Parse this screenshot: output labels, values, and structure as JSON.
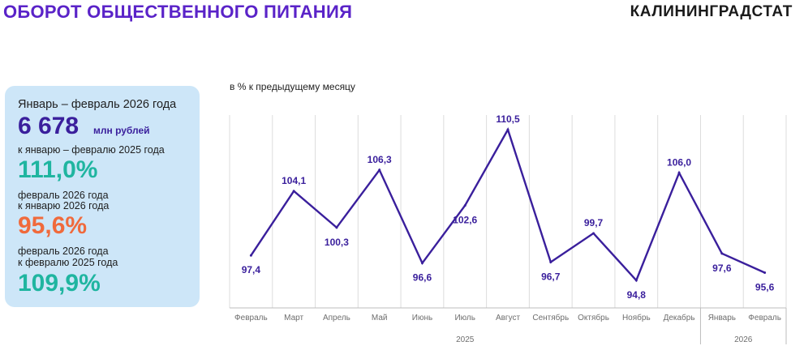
{
  "header": {
    "title": "ОБОРОТ ОБЩЕСТВЕННОГО ПИТАНИЯ",
    "brand": "КАЛИНИНГРАДСТАТ"
  },
  "summary": {
    "period": "Январь – февраль 2026 года",
    "amount": "6 678",
    "amount_unit": "млн рублей",
    "cmp1_caption": "к январю – февралю 2025 года",
    "cmp1_value": "111,0%",
    "cmp2_caption_line1": "февраль 2026 года",
    "cmp2_caption_line2": "к январю 2026 года",
    "cmp2_value": "95,6%",
    "cmp3_caption_line1": "февраль 2026 года",
    "cmp3_caption_line2": "к февралю 2025 года",
    "cmp3_value": "109,9%"
  },
  "colors": {
    "title": "#5a23c8",
    "line": "#3a1f9c",
    "panel_bg": "#cde6f8",
    "green": "#1fb5a0",
    "orange": "#f06a3c",
    "gridline": "#dcdcdc"
  },
  "chart_data": {
    "type": "line",
    "subtitle": "в % к предыдущему месяцу",
    "categories": [
      "Февраль",
      "Март",
      "Апрель",
      "Май",
      "Июнь",
      "Июль",
      "Август",
      "Сентябрь",
      "Октябрь",
      "Ноябрь",
      "Декабрь",
      "Январь",
      "Февраль"
    ],
    "year_groups": [
      {
        "label": "2025",
        "count": 11
      },
      {
        "label": "2026",
        "count": 2
      }
    ],
    "values": [
      97.4,
      104.1,
      100.3,
      106.3,
      96.6,
      102.6,
      110.5,
      96.7,
      99.7,
      94.8,
      106.0,
      97.6,
      95.6
    ],
    "value_labels": [
      "97,4",
      "104,1",
      "100,3",
      "106,3",
      "96,6",
      "102,6",
      "110,5",
      "96,7",
      "99,7",
      "94,8",
      "106,0",
      "97,6",
      "95,6"
    ],
    "label_positions": [
      "below",
      "above",
      "below",
      "above",
      "below",
      "below",
      "above",
      "below",
      "above",
      "below",
      "above",
      "below",
      "below"
    ],
    "grid": "vertical"
  }
}
